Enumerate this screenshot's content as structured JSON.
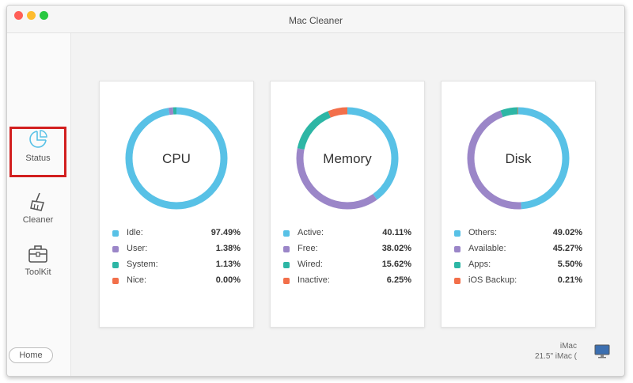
{
  "window": {
    "title": "Mac Cleaner"
  },
  "colors": {
    "cyan": "#58c1e6",
    "purple": "#9b86c8",
    "teal": "#2db6a5",
    "orange": "#f26f4a",
    "highlight": "#d21f1f"
  },
  "sidebar": {
    "items": [
      {
        "label": "Status",
        "icon": "pie-chart-icon",
        "selected": true
      },
      {
        "label": "Cleaner",
        "icon": "broom-icon"
      },
      {
        "label": "ToolKit",
        "icon": "toolbox-icon"
      }
    ],
    "home_label": "Home"
  },
  "cards": [
    {
      "name": "CPU",
      "legend": [
        {
          "label": "Idle:",
          "value": "97.49%",
          "color": "#58c1e6",
          "fraction": 0.9749
        },
        {
          "label": "User:",
          "value": "1.38%",
          "color": "#9b86c8",
          "fraction": 0.0138
        },
        {
          "label": "System:",
          "value": "1.13%",
          "color": "#2db6a5",
          "fraction": 0.0113
        },
        {
          "label": "Nice:",
          "value": "0.00%",
          "color": "#f26f4a",
          "fraction": 0.0
        }
      ]
    },
    {
      "name": "Memory",
      "legend": [
        {
          "label": "Active:",
          "value": "40.11%",
          "color": "#58c1e6",
          "fraction": 0.4011
        },
        {
          "label": "Free:",
          "value": "38.02%",
          "color": "#9b86c8",
          "fraction": 0.3802
        },
        {
          "label": "Wired:",
          "value": "15.62%",
          "color": "#2db6a5",
          "fraction": 0.1562
        },
        {
          "label": "Inactive:",
          "value": "6.25%",
          "color": "#f26f4a",
          "fraction": 0.0625
        }
      ]
    },
    {
      "name": "Disk",
      "legend": [
        {
          "label": "Others:",
          "value": "49.02%",
          "color": "#58c1e6",
          "fraction": 0.4902
        },
        {
          "label": "Available:",
          "value": "45.27%",
          "color": "#9b86c8",
          "fraction": 0.4527
        },
        {
          "label": "Apps:",
          "value": "5.50%",
          "color": "#2db6a5",
          "fraction": 0.055
        },
        {
          "label": "iOS Backup:",
          "value": "0.21%",
          "color": "#f26f4a",
          "fraction": 0.0021
        }
      ]
    }
  ],
  "footer": {
    "imac_title": "iMac",
    "imac_model": "21.5\" iMac ("
  }
}
